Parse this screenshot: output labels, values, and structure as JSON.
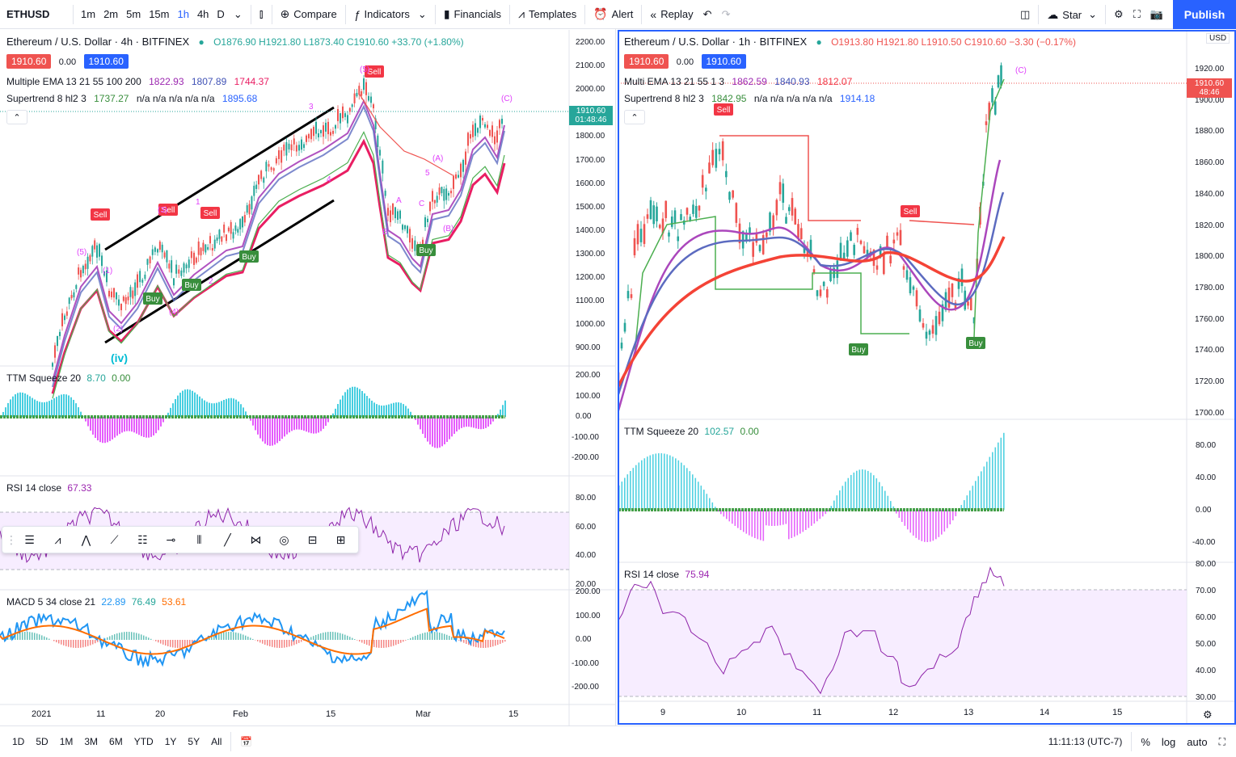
{
  "topbar": {
    "symbol": "ETHUSD",
    "timeframes": [
      "1m",
      "2m",
      "5m",
      "15m",
      "1h",
      "4h",
      "D"
    ],
    "active_timeframe": "1h",
    "compare": "Compare",
    "indicators": "Indicators",
    "financials": "Financials",
    "templates": "Templates",
    "alert": "Alert",
    "replay": "Replay",
    "star": "Star",
    "publish": "Publish"
  },
  "left_chart": {
    "title": "Ethereum / U.S. Dollar · 4h · BITFINEX",
    "ohlc": "O1876.90 H1921.80 L1873.40 C1910.60 +33.70 (+1.80%)",
    "bid": "1910.60",
    "spread": "0.00",
    "ask": "1910.60",
    "ema_label": "Multiple EMA 13 21 55 100 200",
    "ema_values": [
      "1822.93",
      "1807.89",
      "1744.37"
    ],
    "supertrend_label": "Supertrend 8 hl2 3",
    "supertrend_value": "1737.27",
    "supertrend_na": "n/a n/a n/a n/a n/a",
    "supertrend_last": "1895.68",
    "price_axis": [
      "2200.00",
      "2100.00",
      "2000.00",
      "1900.00",
      "1800.00",
      "1700.00",
      "1600.00",
      "1500.00",
      "1400.00",
      "1300.00",
      "1200.00",
      "1100.00",
      "1000.00",
      "900.00"
    ],
    "last_price_label": "1910.60",
    "last_price_timer": "01:48:46",
    "ttm_label": "TTM Squeeze 20",
    "ttm_v1": "8.70",
    "ttm_v2": "0.00",
    "ttm_axis": [
      "200.00",
      "100.00",
      "0.00",
      "-100.00",
      "-200.00"
    ],
    "rsi_label": "RSI 14 close",
    "rsi_value": "67.33",
    "rsi_axis": [
      "80.00",
      "60.00",
      "40.00",
      "20.00"
    ],
    "macd_label": "MACD 5 34 close 21",
    "macd_values": [
      "22.89",
      "76.49",
      "53.61"
    ],
    "macd_axis": [
      "200.00",
      "100.00",
      "0.00",
      "-100.00",
      "-200.00"
    ],
    "time_axis": [
      "2021",
      "11",
      "20",
      "Feb",
      "15",
      "Mar",
      "15"
    ],
    "wave_labels": [
      "(iv)",
      "(5)",
      "(1)",
      "(2)",
      "(3)",
      "(4)",
      "1",
      "2",
      "3",
      "4",
      "5",
      "(5)",
      "(A)",
      "(B)",
      "(C)",
      "A",
      "B",
      "C"
    ],
    "signals": [
      "Sell",
      "Sell",
      "Sell",
      "Sell",
      "Buy",
      "Buy",
      "Buy",
      "Buy"
    ]
  },
  "right_chart": {
    "title": "Ethereum / U.S. Dollar · 1h · BITFINEX",
    "ohlc": "O1913.80 H1921.80 L1910.50 C1910.60 −3.30 (−0.17%)",
    "bid": "1910.60",
    "spread": "0.00",
    "ask": "1910.60",
    "ema_label": "Multi EMA 13 21 55 1 3",
    "ema_values": [
      "1862.59",
      "1840.93",
      "1812.07"
    ],
    "supertrend_label": "Supertrend 8 hl2 3",
    "supertrend_value": "1842.95",
    "supertrend_na": "n/a n/a n/a n/a n/a",
    "supertrend_last": "1914.18",
    "currency": "USD",
    "price_axis": [
      "1920.00",
      "1900.00",
      "1880.00",
      "1860.00",
      "1840.00",
      "1820.00",
      "1800.00",
      "1780.00",
      "1760.00",
      "1740.00",
      "1720.00",
      "1700.00"
    ],
    "last_price_label": "1910.60",
    "last_price_timer": "48:46",
    "ttm_label": "TTM Squeeze 20",
    "ttm_v1": "102.57",
    "ttm_v2": "0.00",
    "ttm_axis": [
      "80.00",
      "40.00",
      "0.00",
      "-40.00"
    ],
    "rsi_label": "RSI 14 close",
    "rsi_value": "75.94",
    "rsi_axis": [
      "80.00",
      "70.00",
      "60.00",
      "50.00",
      "40.00",
      "30.00"
    ],
    "time_axis": [
      "9",
      "10",
      "11",
      "12",
      "13",
      "14",
      "15"
    ],
    "wave_label": "(C)",
    "signals": [
      "Sell",
      "Sell",
      "Buy",
      "Buy"
    ]
  },
  "bottombar": {
    "ranges": [
      "1D",
      "5D",
      "1M",
      "3M",
      "6M",
      "YTD",
      "1Y",
      "5Y",
      "All"
    ],
    "clock": "11:11:13 (UTC-7)",
    "percent": "%",
    "log": "log",
    "auto": "auto"
  },
  "colors": {
    "accent": "#2962ff",
    "up": "#26a69a",
    "down": "#ef5350",
    "sell": "#f23645",
    "buy": "#22ab94",
    "wave": "#e040fb"
  }
}
